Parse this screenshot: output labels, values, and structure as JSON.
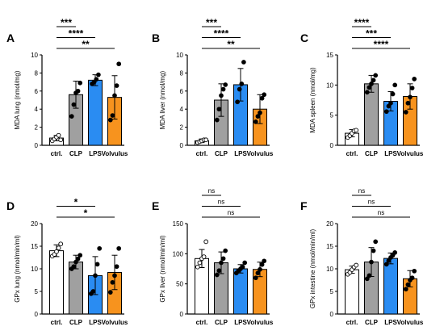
{
  "chart_data": [
    {
      "type": "bar",
      "panel": "A",
      "ylabel": "MDA lung (nmol/mg)",
      "categories": [
        "ctrl.",
        "CLP",
        "LPS",
        "Volvulus"
      ],
      "ylim": [
        0,
        10
      ],
      "yticks": [
        0,
        2,
        4,
        6,
        8,
        10
      ],
      "values": [
        0.8,
        5.6,
        7.2,
        5.3
      ],
      "errors": [
        0.3,
        1.5,
        0.6,
        2.4
      ],
      "points": [
        [
          0.5,
          0.7,
          0.9,
          1.1,
          0.6
        ],
        [
          3.2,
          4.5,
          5.8,
          6.0,
          6.9
        ],
        [
          6.8,
          7.0,
          7.3,
          7.8
        ],
        [
          2.8,
          3.3,
          5.5,
          6.6,
          9.0
        ]
      ],
      "significance": [
        {
          "from": 0,
          "to": 1,
          "label": "***"
        },
        {
          "from": 0,
          "to": 2,
          "label": "****"
        },
        {
          "from": 0,
          "to": 3,
          "label": "**"
        }
      ]
    },
    {
      "type": "bar",
      "panel": "B",
      "ylabel": "MDA liver (nmol/mg)",
      "categories": [
        "ctrl.",
        "CLP",
        "LPS",
        "Volvulus"
      ],
      "ylim": [
        0,
        10
      ],
      "yticks": [
        0,
        2,
        4,
        6,
        8,
        10
      ],
      "values": [
        0.5,
        5.0,
        6.7,
        4.0
      ],
      "errors": [
        0.2,
        1.8,
        1.8,
        1.6
      ],
      "points": [
        [
          0.3,
          0.4,
          0.5,
          0.6,
          0.6
        ],
        [
          2.8,
          4.0,
          5.5,
          6.2,
          6.7
        ],
        [
          4.8,
          6.2,
          6.8,
          9.2
        ],
        [
          2.6,
          3.2,
          3.6,
          5.2,
          5.6
        ]
      ],
      "significance": [
        {
          "from": 0,
          "to": 1,
          "label": "***"
        },
        {
          "from": 0,
          "to": 2,
          "label": "****"
        },
        {
          "from": 0,
          "to": 3,
          "label": "**"
        }
      ]
    },
    {
      "type": "bar",
      "panel": "C",
      "ylabel": "MDA spleen (nmol/mg)",
      "categories": [
        "ctrl.",
        "CLP",
        "LPS",
        "Volvulus"
      ],
      "ylim": [
        0,
        15
      ],
      "yticks": [
        0,
        5,
        10,
        15
      ],
      "values": [
        2.0,
        10.2,
        7.3,
        8.1
      ],
      "errors": [
        0.6,
        1.4,
        1.6,
        2.1
      ],
      "points": [
        [
          1.3,
          1.6,
          2.0,
          2.4,
          2.5
        ],
        [
          8.8,
          9.6,
          10.2,
          10.8,
          11.6
        ],
        [
          5.6,
          6.5,
          7.0,
          8.5,
          10.0
        ],
        [
          5.5,
          7.0,
          8.0,
          9.5,
          11.0
        ]
      ],
      "significance": [
        {
          "from": 0,
          "to": 1,
          "label": "****"
        },
        {
          "from": 0,
          "to": 2,
          "label": "***"
        },
        {
          "from": 0,
          "to": 3,
          "label": "****"
        }
      ]
    },
    {
      "type": "bar",
      "panel": "D",
      "ylabel": "GPx lung (nmol/min/ml)",
      "categories": [
        "ctrl.",
        "CLP",
        "LPS",
        "Volvulus"
      ],
      "ylim": [
        0,
        20
      ],
      "yticks": [
        0,
        5,
        10,
        15,
        20
      ],
      "values": [
        14.0,
        11.5,
        8.5,
        9.2
      ],
      "errors": [
        1.3,
        1.5,
        4.2,
        3.8
      ],
      "points": [
        [
          12.8,
          13.2,
          13.8,
          14.6,
          15.5
        ],
        [
          10.0,
          10.5,
          11.5,
          12.2,
          13.0
        ],
        [
          4.5,
          5.0,
          8.5,
          11.0,
          14.5
        ],
        [
          4.8,
          7.0,
          8.5,
          10.5,
          14.5
        ]
      ],
      "significance": [
        {
          "from": 0,
          "to": 2,
          "label": "*"
        },
        {
          "from": 0,
          "to": 3,
          "label": "*"
        }
      ]
    },
    {
      "type": "bar",
      "panel": "E",
      "ylabel": "GPx liver (nmol/min/ml)",
      "categories": [
        "ctrl.",
        "CLP",
        "LPS",
        "Volvulus"
      ],
      "ylim": [
        0,
        150
      ],
      "yticks": [
        0,
        50,
        100,
        150
      ],
      "values": [
        92,
        85,
        75,
        74
      ],
      "errors": [
        15,
        18,
        7,
        12
      ],
      "points": [
        [
          78,
          85,
          92,
          95,
          120
        ],
        [
          65,
          72,
          85,
          92,
          105
        ],
        [
          68,
          72,
          75,
          78,
          85
        ],
        [
          60,
          68,
          74,
          82,
          88
        ]
      ],
      "significance": [
        {
          "from": 0,
          "to": 1,
          "label": "ns"
        },
        {
          "from": 0,
          "to": 2,
          "label": "ns"
        },
        {
          "from": 0,
          "to": 3,
          "label": "ns"
        }
      ]
    },
    {
      "type": "bar",
      "panel": "F",
      "ylabel": "GPx intestine (nmol/min/ml)",
      "categories": [
        "ctrl.",
        "CLP",
        "LPS",
        "Volvulus"
      ],
      "ylim": [
        0,
        20
      ],
      "yticks": [
        0,
        5,
        10,
        15,
        20
      ],
      "values": [
        9.8,
        11.5,
        12.3,
        7.8
      ],
      "errors": [
        0.8,
        3.2,
        1.2,
        1.8
      ],
      "points": [
        [
          8.8,
          9.2,
          9.8,
          10.4,
          10.8
        ],
        [
          7.8,
          8.5,
          11.5,
          14.0,
          16.0
        ],
        [
          11.0,
          11.8,
          12.5,
          13.0,
          13.6
        ],
        [
          5.5,
          6.5,
          7.5,
          8.0,
          9.5
        ]
      ],
      "significance": [
        {
          "from": 0,
          "to": 1,
          "label": "ns"
        },
        {
          "from": 0,
          "to": 2,
          "label": "ns"
        },
        {
          "from": 0,
          "to": 3,
          "label": "ns"
        }
      ]
    }
  ],
  "colors": {
    "bar_fills": [
      "#ffffff",
      "#a0a0a0",
      "#2a8cf2",
      "#f7931e"
    ],
    "axis": "#000000",
    "point_filled": "#000000"
  }
}
